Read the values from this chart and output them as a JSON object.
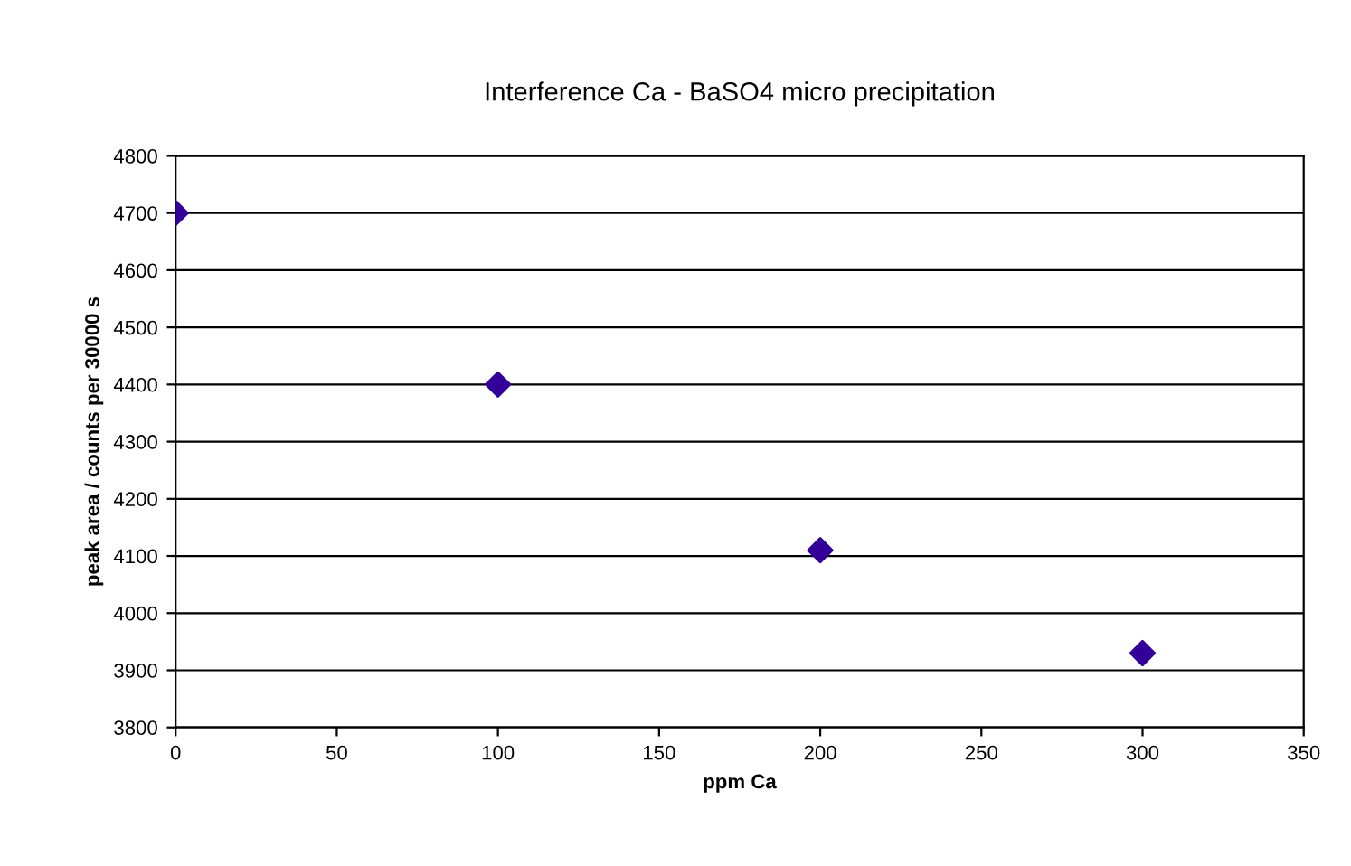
{
  "chart_data": {
    "type": "scatter",
    "title": "Interference Ca - BaSO4 micro precipitation",
    "xlabel": "ppm Ca",
    "ylabel": "peak area / counts per 30000 s",
    "x": [
      0,
      100,
      200,
      300
    ],
    "series": [
      {
        "color": "#330099",
        "values": [
          4700,
          4400,
          4110,
          3930
        ]
      }
    ],
    "xlim": [
      0,
      350
    ],
    "xticks": [
      0,
      50,
      100,
      150,
      200,
      250,
      300,
      350
    ],
    "ylim": [
      3800,
      4800
    ],
    "yticks": [
      3800,
      3900,
      4000,
      4100,
      4200,
      4300,
      4400,
      4500,
      4600,
      4700,
      4800
    ],
    "grid": "y",
    "marker": "diamond",
    "legend": false
  }
}
